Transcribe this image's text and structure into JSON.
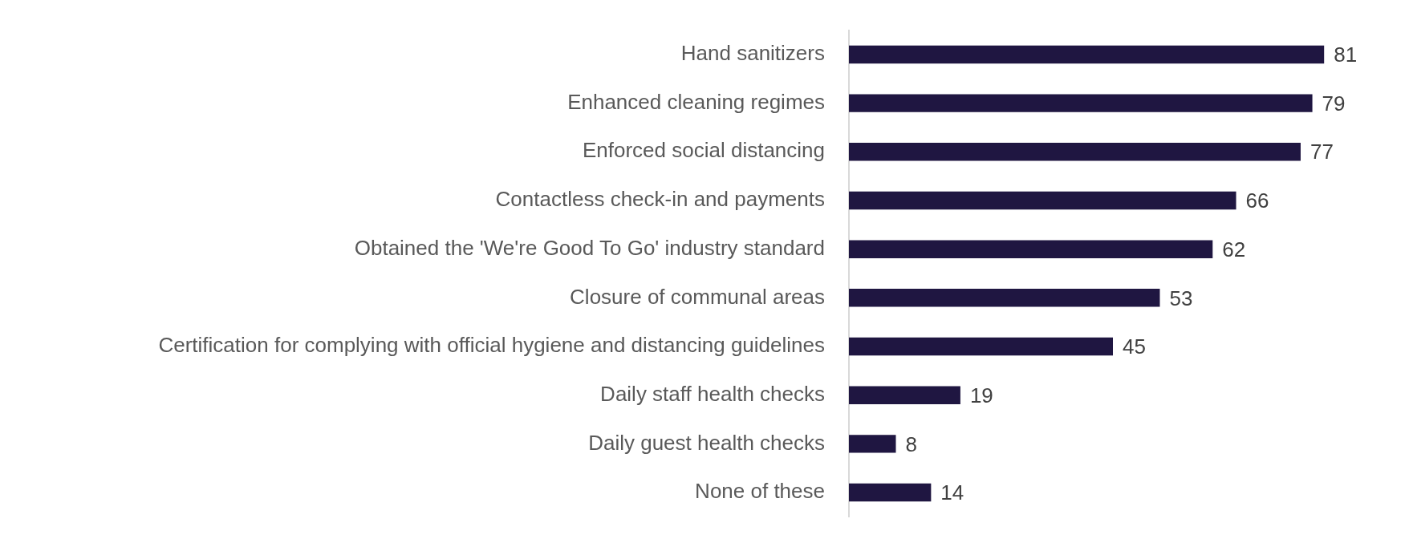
{
  "chart_data": {
    "type": "bar",
    "orientation": "horizontal",
    "categories": [
      "Hand sanitizers",
      "Enhanced cleaning regimes",
      "Enforced social distancing",
      "Contactless check-in and payments",
      "Obtained the 'We're Good To Go' industry standard",
      "Closure of communal areas",
      "Certification for complying with official hygiene and distancing guidelines",
      "Daily staff health checks",
      "Daily guest health checks",
      "None of these"
    ],
    "values": [
      81,
      79,
      77,
      66,
      62,
      53,
      45,
      19,
      8,
      14
    ],
    "color": "#1f1641",
    "tick_labels": "y",
    "grid": false,
    "legend": false,
    "data_labels": true
  }
}
